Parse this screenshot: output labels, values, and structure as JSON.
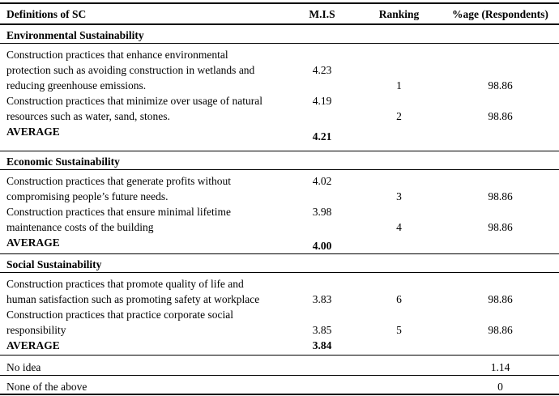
{
  "table": {
    "header": {
      "definitions": "Definitions of SC",
      "mis": "M.I.S",
      "ranking": "Ranking",
      "pct": "%age (Respondents)"
    },
    "sections": [
      {
        "title": "Environmental Sustainability",
        "items": [
          {
            "line1": "Construction practices that enhance environmental",
            "line2": "protection such as avoiding construction in wetlands and",
            "line3": "reducing greenhouse emissions.",
            "mis": "4.23",
            "rank": "1",
            "pct": "98.86"
          },
          {
            "line1": "Construction practices that minimize over usage of natural",
            "line2": "resources such as water, sand, stones.",
            "mis": "4.19",
            "rank": "2",
            "pct": "98.86"
          }
        ],
        "average_label": "AVERAGE",
        "average_mis": "4.21"
      },
      {
        "title": "Economic Sustainability",
        "items": [
          {
            "line1": "Construction practices that generate profits without",
            "line2": "compromising people’s future needs.",
            "mis": "4.02",
            "rank": "3",
            "pct": "98.86"
          },
          {
            "line1": "Construction practices that ensure minimal lifetime",
            "line2": "maintenance costs of the building",
            "mis": "3.98",
            "rank": "4",
            "pct": "98.86"
          }
        ],
        "average_label": "AVERAGE",
        "average_mis": "4.00"
      },
      {
        "title": "Social Sustainability",
        "items": [
          {
            "line1": "Construction practices that promote quality of life and",
            "line2": "human satisfaction such as promoting safety at workplace",
            "mis": "3.83",
            "rank": "6",
            "pct": "98.86"
          },
          {
            "line1": "Construction practices that practice corporate social",
            "line2": "responsibility",
            "mis": "3.85",
            "rank": "5",
            "pct": "98.86"
          }
        ],
        "average_label": "AVERAGE",
        "average_mis": "3.84"
      }
    ],
    "footer_rows": [
      {
        "label": "No idea",
        "pct": "1.14"
      },
      {
        "label": "None of the above",
        "pct": "0"
      }
    ]
  }
}
